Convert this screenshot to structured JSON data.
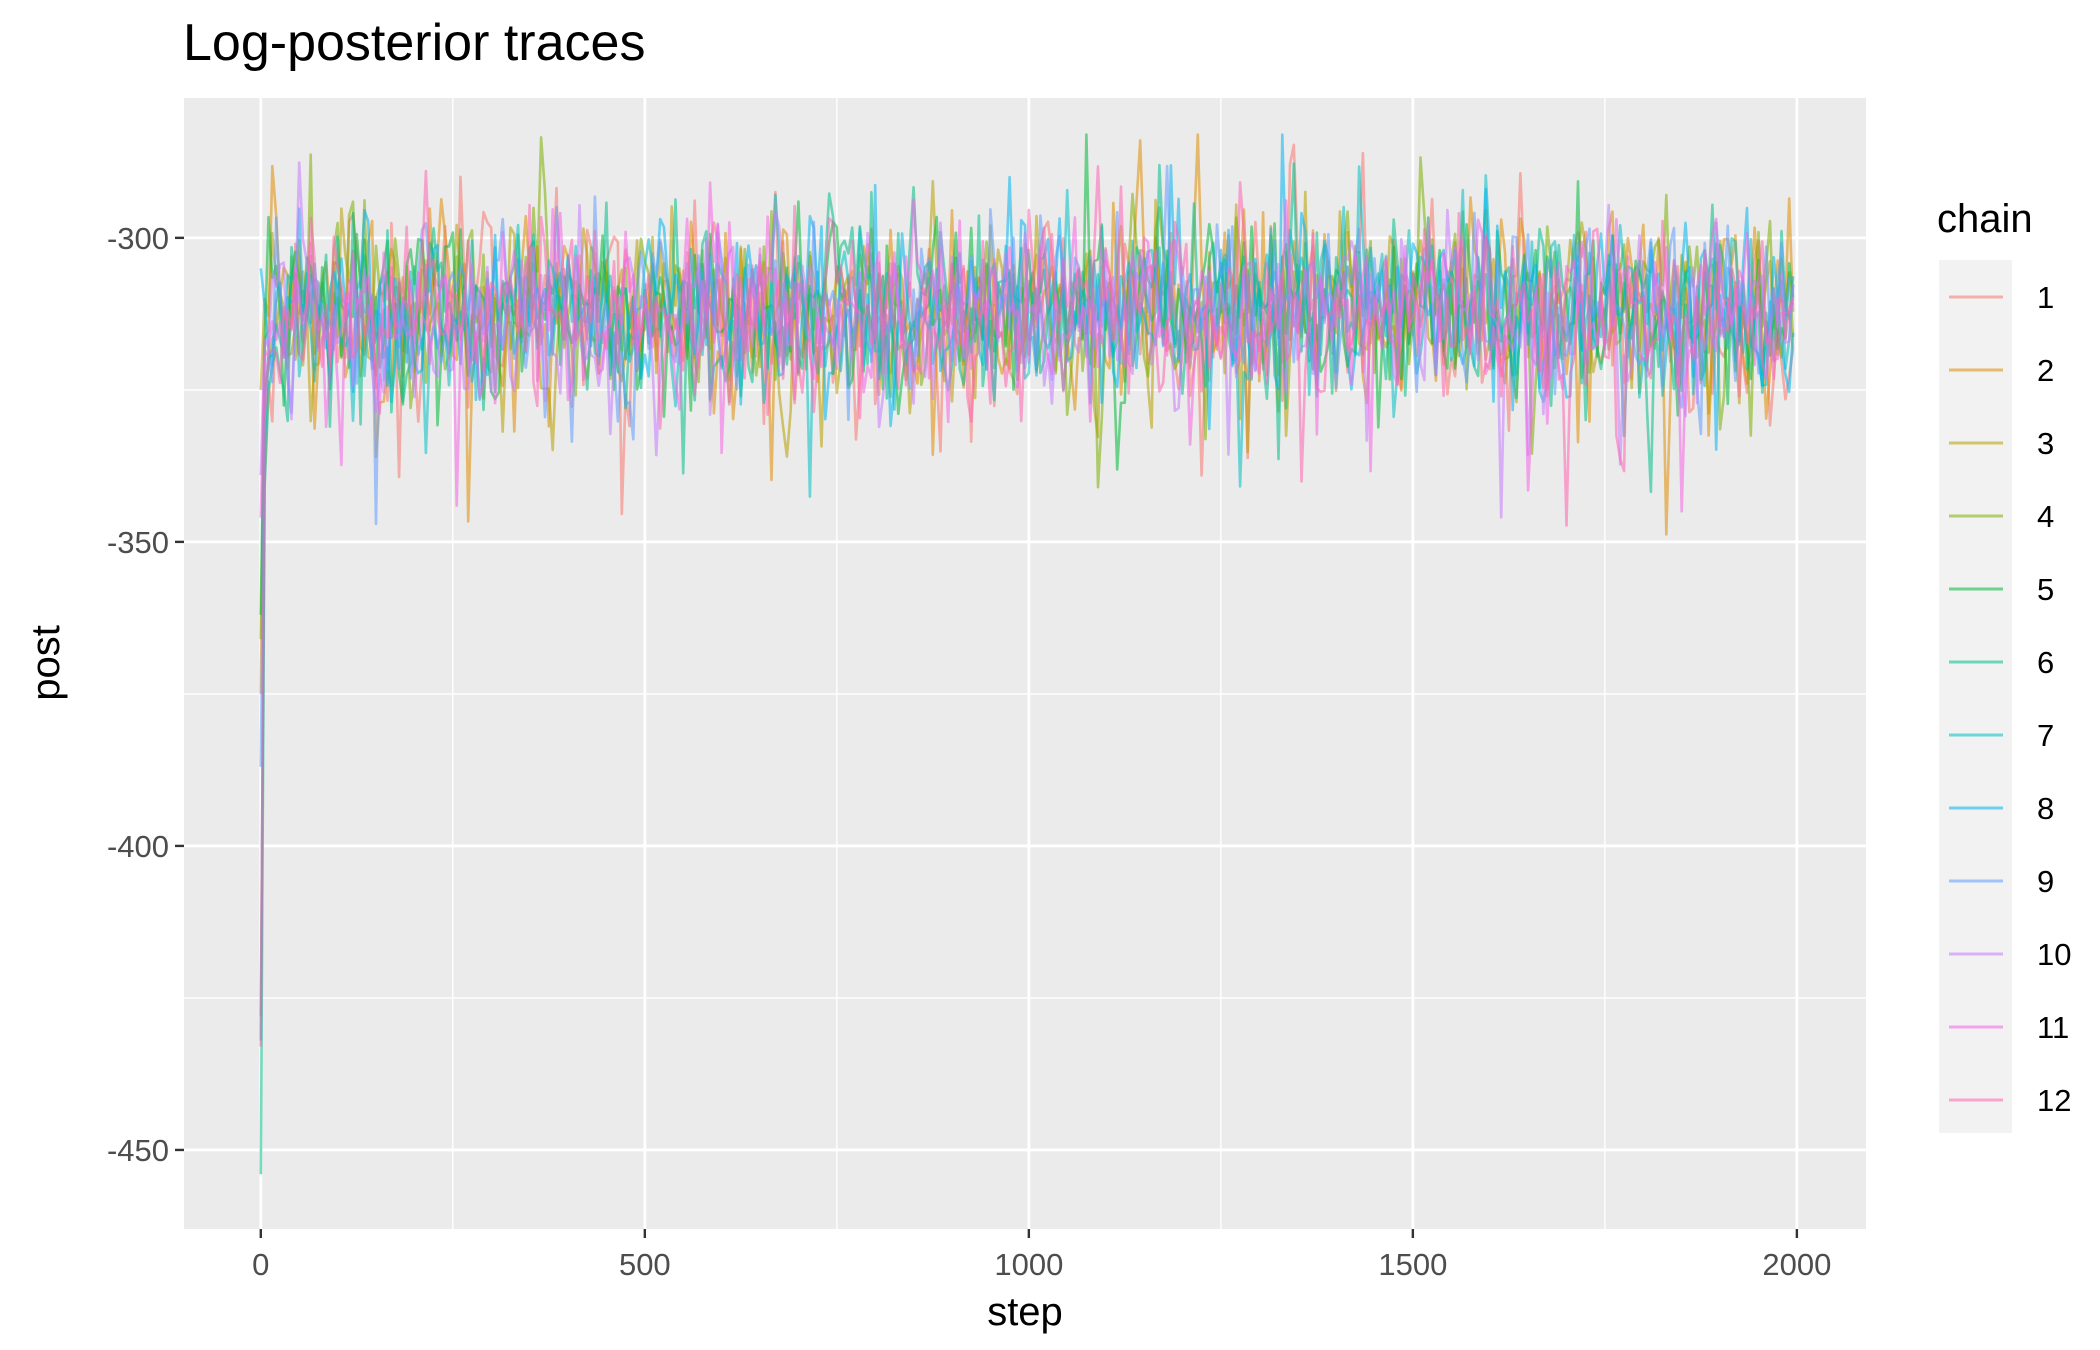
{
  "chart_data": {
    "type": "line",
    "title": "Log-posterior traces",
    "xlabel": "step",
    "ylabel": "post",
    "xlim": [
      -100,
      2090
    ],
    "ylim": [
      -463,
      -277
    ],
    "x_ticks": [
      0,
      500,
      1000,
      1500,
      2000
    ],
    "x_tick_labels": [
      "0",
      "500",
      "1000",
      "1500",
      "2000"
    ],
    "y_ticks": [
      -300,
      -350,
      -400,
      -450
    ],
    "y_tick_labels": [
      "-300",
      "-350",
      "-400",
      "-450"
    ],
    "grid": true,
    "legend": {
      "title": "chain",
      "position": "right"
    },
    "series_shape": {
      "x_start": 0,
      "x_end": 1995,
      "step": 5,
      "typical_center": -312,
      "typical_range": [
        -341,
        -285
      ],
      "note_not_rendered": false
    },
    "series": [
      {
        "name": "1",
        "color": "#F8766D",
        "start": -428,
        "seed": 11
      },
      {
        "name": "2",
        "color": "#DE8C00",
        "start": -375,
        "seed": 23
      },
      {
        "name": "3",
        "color": "#B79F00",
        "start": -325,
        "seed": 37
      },
      {
        "name": "4",
        "color": "#7CAE00",
        "start": -366,
        "seed": 41
      },
      {
        "name": "5",
        "color": "#00BA38",
        "start": -362,
        "seed": 53
      },
      {
        "name": "6",
        "color": "#00C08B",
        "start": -454,
        "seed": 67
      },
      {
        "name": "7",
        "color": "#00BFC4",
        "start": -432,
        "seed": 71
      },
      {
        "name": "8",
        "color": "#00B4F0",
        "start": -305,
        "seed": 83
      },
      {
        "name": "9",
        "color": "#619CFF",
        "start": -387,
        "seed": 97
      },
      {
        "name": "10",
        "color": "#C77CFF",
        "start": -339,
        "seed": 101
      },
      {
        "name": "11",
        "color": "#F564E3",
        "start": -346,
        "seed": 113
      },
      {
        "name": "12",
        "color": "#FF64B0",
        "start": -433,
        "seed": 127
      }
    ]
  }
}
